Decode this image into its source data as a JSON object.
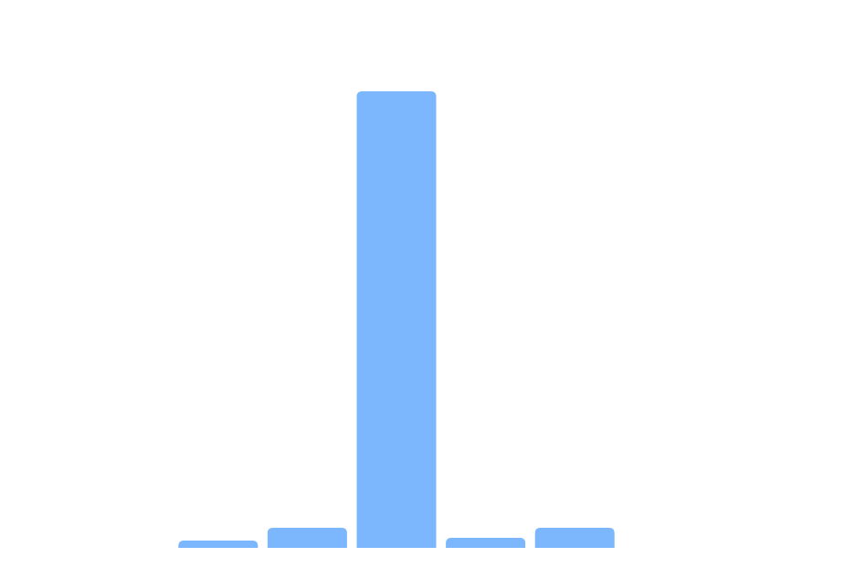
{
  "chart_data": {
    "type": "bar",
    "categories": [
      "",
      "",
      "",
      "",
      ""
    ],
    "values": [
      8,
      22,
      500,
      11,
      22
    ],
    "ylim": [
      0,
      520
    ],
    "grid": false,
    "legend": "none",
    "colors": {
      "bar": "#7cb6fd",
      "background": "#ffffff"
    }
  }
}
